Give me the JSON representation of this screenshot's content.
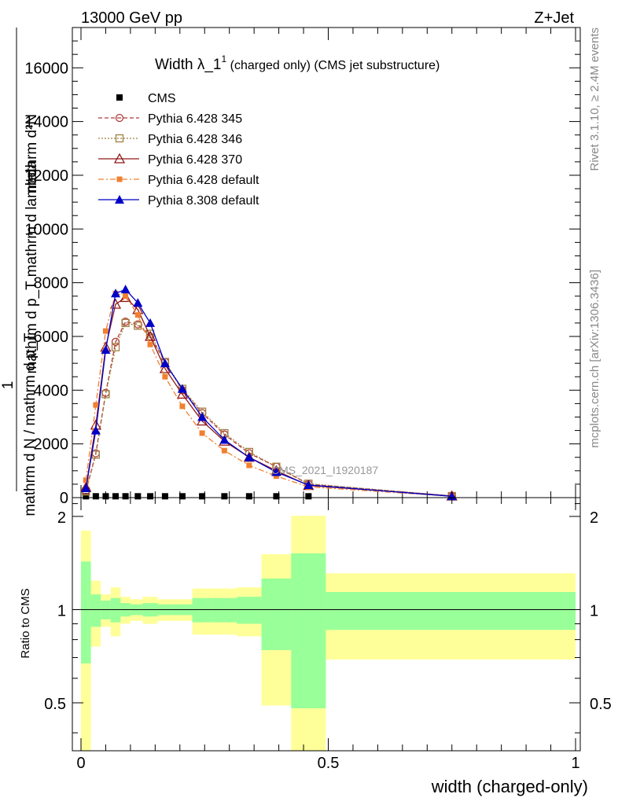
{
  "header": {
    "energy": "13000 GeV pp",
    "process": "Z+Jet",
    "plot_title_main": "Width λ_1",
    "plot_title_sup": "1",
    "plot_title_rest": " (charged only) (CMS jet substructure)",
    "watermark": "CMS_2021_I1920187"
  },
  "side_labels": {
    "rivet": "Rivet 3.1.10, ≥ 2.4M events",
    "mcplots": "mcplots.cern.ch [arXiv:1306.3436]"
  },
  "colors": {
    "cms": "#000000",
    "p345": "#b03a3a",
    "p346": "#a08040",
    "p370": "#901818",
    "p6def": "#f08030",
    "p8def": "#0000c8",
    "band_inner": "#99ff99",
    "band_outer": "#ffff99"
  },
  "chart_data": [
    {
      "type": "line",
      "title": "Width λ_1^1 (charged only) (CMS jet substructure)",
      "ylabel_top": "mathrm d²N",
      "ylabel_mid": "mathrm d p_T mathrm d lambda",
      "ylabel_one": "1",
      "ylabel_bottom": "mathrm d N / mathrm d p_T",
      "xlim": [
        0,
        1
      ],
      "ylim": [
        0,
        17500
      ],
      "y_ticks": [
        {
          "value": 0,
          "label": "0"
        },
        {
          "value": 2000,
          "label": "2000"
        },
        {
          "value": 4000,
          "label": "4000"
        },
        {
          "value": 6000,
          "label": "6000"
        },
        {
          "value": 8000,
          "label": "8000"
        },
        {
          "value": 10000,
          "label": "10000"
        },
        {
          "value": 12000,
          "label": "12000"
        },
        {
          "value": 14000,
          "label": "14000"
        },
        {
          "value": 16000,
          "label": "16000"
        }
      ],
      "x": [
        0.01,
        0.03,
        0.05,
        0.07,
        0.09,
        0.115,
        0.14,
        0.17,
        0.205,
        0.245,
        0.29,
        0.34,
        0.395,
        0.46,
        0.75
      ],
      "series": [
        {
          "key": "cms",
          "name": "CMS",
          "values": [
            50,
            50,
            50,
            50,
            50,
            50,
            50,
            50,
            50,
            50,
            50,
            50,
            50,
            50,
            50
          ]
        },
        {
          "key": "p345",
          "name": "Pythia 6.428 345",
          "values": [
            250,
            1650,
            3900,
            5800,
            6550,
            6450,
            6000,
            5050,
            4000,
            3150,
            2350,
            1650,
            1150,
            500,
            60
          ]
        },
        {
          "key": "p346",
          "name": "Pythia 6.428 346",
          "values": [
            230,
            1600,
            3850,
            5600,
            6500,
            6400,
            6100,
            5050,
            4050,
            3200,
            2400,
            1700,
            1150,
            520,
            60
          ]
        },
        {
          "key": "p370",
          "name": "Pythia 6.428 370",
          "values": [
            380,
            2700,
            5600,
            7200,
            7450,
            7000,
            6000,
            4800,
            3850,
            2850,
            2100,
            1500,
            1000,
            450,
            60
          ]
        },
        {
          "key": "p6def",
          "name": "Pythia 6.428 default",
          "values": [
            650,
            3450,
            6200,
            7600,
            7500,
            6800,
            5700,
            4500,
            3400,
            2400,
            1750,
            1200,
            800,
            400,
            50
          ]
        },
        {
          "key": "p8def",
          "name": "Pythia 8.308 default",
          "values": [
            350,
            2500,
            5500,
            7600,
            7750,
            7250,
            6500,
            5000,
            4050,
            3000,
            2150,
            1500,
            950,
            470,
            50
          ]
        }
      ]
    },
    {
      "type": "area",
      "ylabel": "Ratio to CMS",
      "xlabel": "width (charged-only)",
      "xlim": [
        0,
        1
      ],
      "ylim": [
        0.35,
        2.3
      ],
      "x_ticks": [
        {
          "value": 0,
          "label": "0"
        },
        {
          "value": 0.5,
          "label": "0.5"
        },
        {
          "value": 1,
          "label": "1"
        }
      ],
      "y_ticks": [
        {
          "value": 0.5,
          "label": "0.5"
        },
        {
          "value": 1,
          "label": "1"
        },
        {
          "value": 2,
          "label": "2"
        }
      ],
      "bins": [
        {
          "x0": 0.0,
          "x1": 0.02,
          "in_lo": 0.67,
          "in_hi": 1.43,
          "out_lo": 0.3,
          "out_hi": 1.8
        },
        {
          "x0": 0.02,
          "x1": 0.04,
          "in_lo": 0.88,
          "in_hi": 1.12,
          "out_lo": 0.76,
          "out_hi": 1.24
        },
        {
          "x0": 0.04,
          "x1": 0.06,
          "in_lo": 0.93,
          "in_hi": 1.07,
          "out_lo": 0.88,
          "out_hi": 1.12
        },
        {
          "x0": 0.06,
          "x1": 0.08,
          "in_lo": 0.91,
          "in_hi": 1.09,
          "out_lo": 0.82,
          "out_hi": 1.18
        },
        {
          "x0": 0.08,
          "x1": 0.1,
          "in_lo": 0.95,
          "in_hi": 1.05,
          "out_lo": 0.9,
          "out_hi": 1.1
        },
        {
          "x0": 0.1,
          "x1": 0.125,
          "in_lo": 0.96,
          "in_hi": 1.04,
          "out_lo": 0.92,
          "out_hi": 1.08
        },
        {
          "x0": 0.125,
          "x1": 0.155,
          "in_lo": 0.95,
          "in_hi": 1.05,
          "out_lo": 0.9,
          "out_hi": 1.1
        },
        {
          "x0": 0.155,
          "x1": 0.185,
          "in_lo": 0.96,
          "in_hi": 1.04,
          "out_lo": 0.92,
          "out_hi": 1.08
        },
        {
          "x0": 0.185,
          "x1": 0.225,
          "in_lo": 0.96,
          "in_hi": 1.04,
          "out_lo": 0.92,
          "out_hi": 1.08
        },
        {
          "x0": 0.225,
          "x1": 0.265,
          "in_lo": 0.91,
          "in_hi": 1.09,
          "out_lo": 0.83,
          "out_hi": 1.17
        },
        {
          "x0": 0.265,
          "x1": 0.315,
          "in_lo": 0.91,
          "in_hi": 1.09,
          "out_lo": 0.83,
          "out_hi": 1.17
        },
        {
          "x0": 0.315,
          "x1": 0.365,
          "in_lo": 0.9,
          "in_hi": 1.1,
          "out_lo": 0.82,
          "out_hi": 1.18
        },
        {
          "x0": 0.365,
          "x1": 0.425,
          "in_lo": 0.74,
          "in_hi": 1.26,
          "out_lo": 0.49,
          "out_hi": 1.51
        },
        {
          "x0": 0.425,
          "x1": 0.495,
          "in_lo": 0.48,
          "in_hi": 1.52,
          "out_lo": 0.3,
          "out_hi": 2.01
        },
        {
          "x0": 0.495,
          "x1": 1.0,
          "in_lo": 0.86,
          "in_hi": 1.14,
          "out_lo": 0.69,
          "out_hi": 1.31
        }
      ]
    }
  ]
}
